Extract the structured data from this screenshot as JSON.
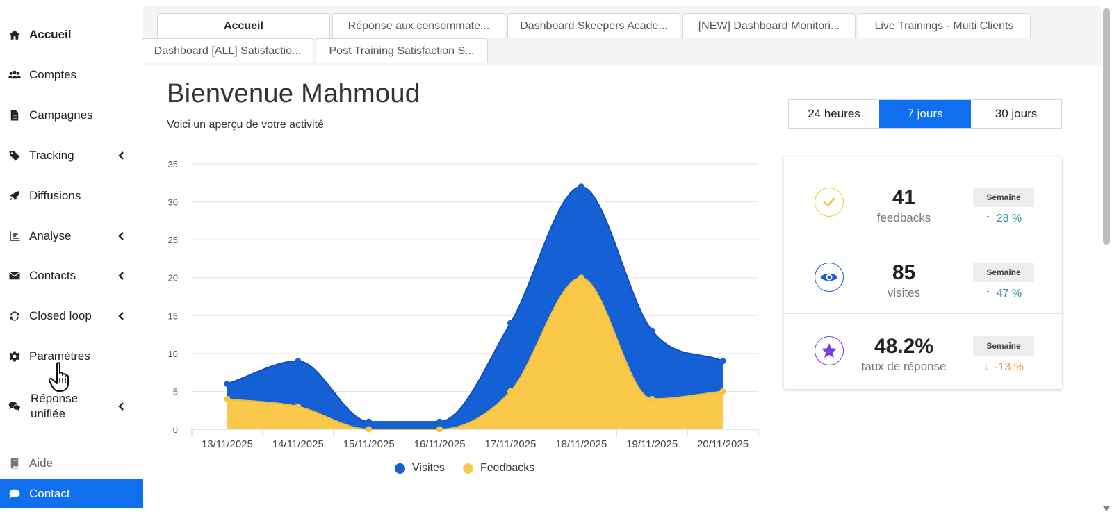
{
  "sidebar": {
    "items": [
      {
        "label": "Accueil",
        "icon": "home-icon"
      },
      {
        "label": "Comptes",
        "icon": "users-icon"
      },
      {
        "label": "Campagnes",
        "icon": "file-icon"
      },
      {
        "label": "Tracking",
        "icon": "tag-icon"
      },
      {
        "label": "Diffusions",
        "icon": "rocket-icon"
      },
      {
        "label": "Analyse",
        "icon": "chart-icon"
      },
      {
        "label": "Contacts",
        "icon": "envelope-icon"
      },
      {
        "label": "Closed loop",
        "icon": "sync-icon"
      },
      {
        "label": "Paramètres",
        "icon": "gear-icon"
      },
      {
        "label": "Réponse",
        "label2": "unifiée",
        "icon": "comments-icon"
      },
      {
        "label": "Aide",
        "icon": "book-icon"
      },
      {
        "label": "Contact",
        "icon": "chat-icon"
      }
    ]
  },
  "tabs": [
    {
      "label": "Accueil"
    },
    {
      "label": "Réponse aux consommate..."
    },
    {
      "label": "Dashboard Skeepers Acade..."
    },
    {
      "label": "[NEW] Dashboard Monitori..."
    },
    {
      "label": "Live Trainings - Multi Clients"
    },
    {
      "label": "Dashboard [ALL] Satisfactio..."
    },
    {
      "label": "Post Training Satisfaction S..."
    }
  ],
  "welcome": {
    "title": "Bienvenue Mahmoud",
    "subtitle": "Voici un aperçu de votre activité"
  },
  "period": {
    "options": [
      "24 heures",
      "7 jours",
      "30 jours"
    ],
    "selected": "7 jours"
  },
  "stats": [
    {
      "value": "41",
      "label": "feedbacks",
      "badge": "Semaine",
      "trend": "28 %",
      "direction": "up",
      "icon": "check-icon",
      "color": "#f5c242"
    },
    {
      "value": "85",
      "label": "visites",
      "badge": "Semaine",
      "trend": "47 %",
      "direction": "up",
      "icon": "eye-icon",
      "color": "#1a5fc8"
    },
    {
      "value": "48.2%",
      "label": "taux de réponse",
      "badge": "Semaine",
      "trend": "-13 %",
      "direction": "down",
      "icon": "star-icon",
      "color": "#7a3fe0"
    }
  ],
  "colors": {
    "accent": "#0f6fee",
    "visites": "#1560d4",
    "feedbacks": "#fbc94a",
    "trend_up": "#2a8ea0",
    "trend_down": "#f0953a"
  },
  "chart_data": {
    "type": "area",
    "categories": [
      "13/11/2025",
      "14/11/2025",
      "15/11/2025",
      "16/11/2025",
      "17/11/2025",
      "18/11/2025",
      "19/11/2025",
      "20/11/2025"
    ],
    "series": [
      {
        "name": "Visites",
        "values": [
          6,
          9,
          1,
          1,
          14,
          32,
          13,
          9
        ]
      },
      {
        "name": "Feedbacks",
        "values": [
          4,
          3,
          0,
          0,
          5,
          20,
          4,
          5
        ]
      }
    ],
    "ylim": [
      0,
      35
    ],
    "yticks": [
      0,
      5,
      10,
      15,
      20,
      25,
      30,
      35
    ],
    "grid": true,
    "legend": "bottom"
  }
}
